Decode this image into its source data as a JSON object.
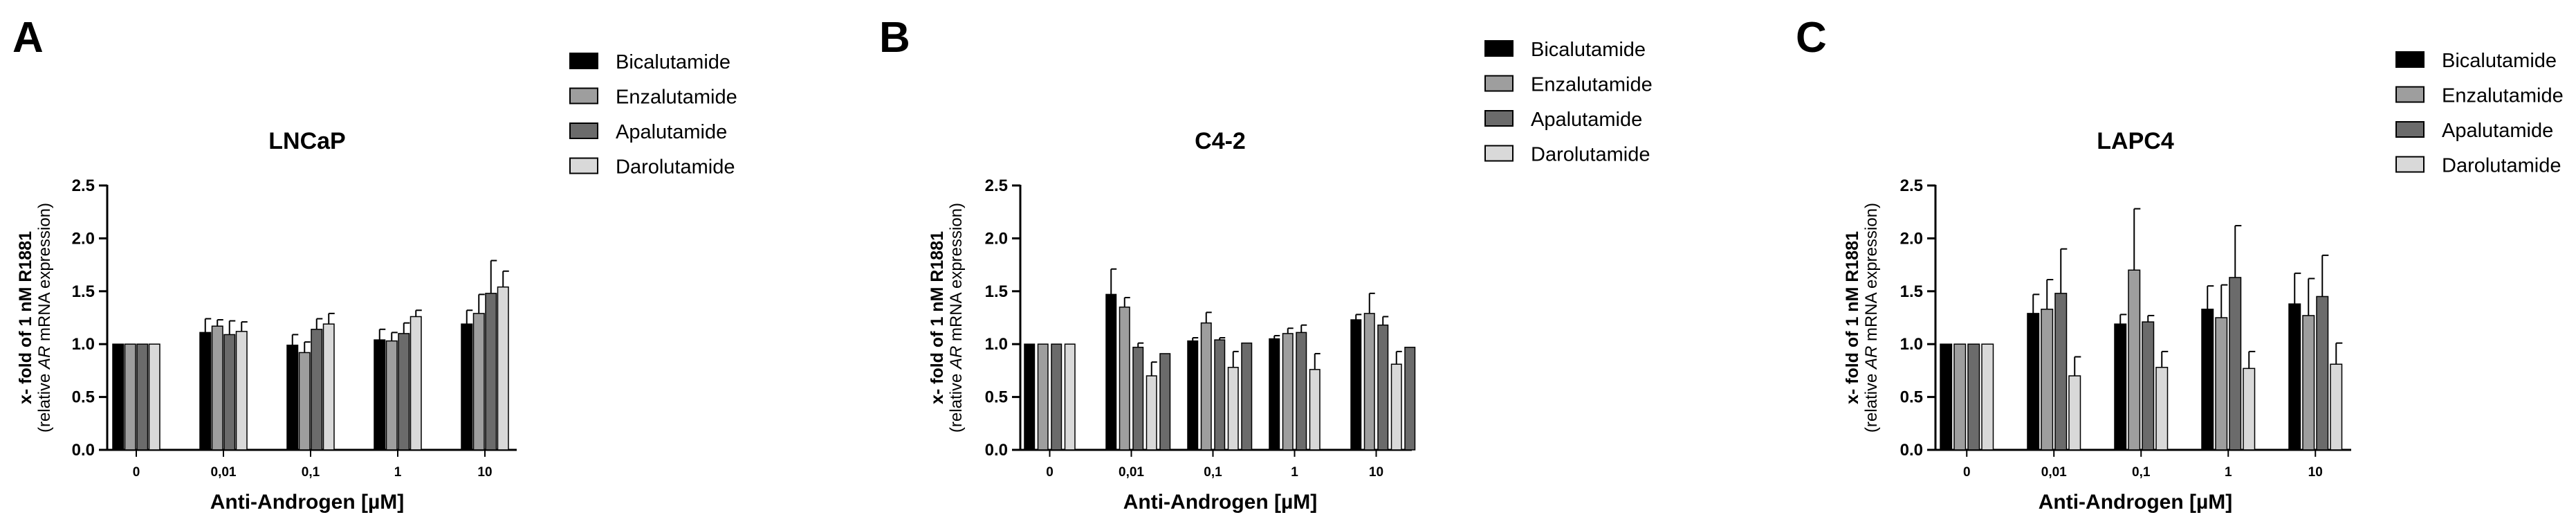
{
  "chart_data": [
    {
      "type": "bar",
      "panel_label": "A",
      "title": "LNCaP",
      "xlabel": "Anti-Androgen [µM]",
      "ylabel_line1": "x- fold of 1 nM R1881",
      "ylabel_line2_pre": "(relative ",
      "ylabel_line2_italic": "AR",
      "ylabel_line2_post": " mRNA expression)",
      "ylim": [
        0,
        2.5
      ],
      "yticks": [
        "0.0",
        "0.5",
        "1.0",
        "1.5",
        "2.0",
        "2.5"
      ],
      "categories": [
        "0",
        "0,01",
        "0,1",
        "1",
        "10"
      ],
      "series": [
        {
          "name": "Bicalutamide",
          "color": "#000000",
          "values": [
            1.0,
            1.11,
            0.99,
            1.04,
            1.19
          ],
          "errors": [
            0,
            0.13,
            0.1,
            0.1,
            0.13
          ]
        },
        {
          "name": "Enzalutamide",
          "color": "#9e9e9e",
          "values": [
            1.0,
            1.17,
            0.92,
            1.03,
            1.29
          ],
          "errors": [
            0,
            0.06,
            0.1,
            0.08,
            0.18
          ]
        },
        {
          "name": "Apalutamide",
          "color": "#6b6b6b",
          "values": [
            1.0,
            1.09,
            1.14,
            1.1,
            1.48
          ],
          "errors": [
            0,
            0.13,
            0.1,
            0.1,
            0.31
          ]
        },
        {
          "name": "Darolutamide",
          "color": "#d9d9d9",
          "values": [
            1.0,
            1.12,
            1.19,
            1.26,
            1.54
          ],
          "errors": [
            0,
            0.09,
            0.1,
            0.06,
            0.15
          ]
        }
      ],
      "legend": "top-right"
    },
    {
      "type": "bar",
      "panel_label": "B",
      "title": "C4-2",
      "xlabel": "Anti-Androgen [µM]",
      "ylabel_line1": "x- fold of 1 nM R1881",
      "ylabel_line2_pre": "(relative ",
      "ylabel_line2_italic": "AR",
      "ylabel_line2_post": " mRNA expression)",
      "ylim": [
        0,
        2.5
      ],
      "yticks": [
        "0.0",
        "0.5",
        "1.0",
        "1.5",
        "2.0",
        "2.5"
      ],
      "categories": [
        "0",
        "0,01",
        "0,1",
        "1",
        "10"
      ],
      "series": [
        {
          "name": "Bicalutamide",
          "color": "#000000",
          "values": [
            1.0,
            1.47,
            1.03,
            1.05,
            1.23
          ],
          "errors": [
            0,
            0.24,
            0.03,
            0.03,
            0.05
          ]
        },
        {
          "name": "Enzalutamide",
          "color": "#9e9e9e",
          "values": [
            1.0,
            1.35,
            1.2,
            1.1,
            1.29
          ],
          "errors": [
            0,
            0.09,
            0.1,
            0.05,
            0.19
          ]
        },
        {
          "name": "Apalutamide",
          "color": "#6b6b6b",
          "values": [
            1.0,
            0.97,
            1.04,
            1.11,
            1.18
          ],
          "errors": [
            0,
            0.04,
            0.02,
            0.07,
            0.08
          ]
        },
        {
          "name": "Darolutamide",
          "color": "#d9d9d9",
          "values": [
            1.0,
            0.7,
            0.78,
            0.76,
            0.81
          ],
          "errors": [
            0,
            0.13,
            0.15,
            0.15,
            0.12
          ]
        }
      ],
      "extra_bars_values": [
        0.91,
        1.01,
        0.0,
        0.97
      ],
      "legend": "top-right"
    },
    {
      "type": "bar",
      "panel_label": "C",
      "title": "LAPC4",
      "xlabel": "Anti-Androgen [µM]",
      "ylabel_line1": "x- fold of 1 nM R1881",
      "ylabel_line2_pre": "(relative ",
      "ylabel_line2_italic": "AR",
      "ylabel_line2_post": " mRNA expression)",
      "ylim": [
        0,
        2.5
      ],
      "yticks": [
        "0.0",
        "0.5",
        "1.0",
        "1.5",
        "2.0",
        "2.5"
      ],
      "categories": [
        "0",
        "0,01",
        "0,1",
        "1",
        "10"
      ],
      "series": [
        {
          "name": "Bicalutamide",
          "color": "#000000",
          "values": [
            1.0,
            1.29,
            1.19,
            1.33,
            1.38
          ],
          "errors": [
            0,
            0.18,
            0.09,
            0.22,
            0.29
          ]
        },
        {
          "name": "Enzalutamide",
          "color": "#9e9e9e",
          "values": [
            1.0,
            1.33,
            1.7,
            1.25,
            1.27
          ],
          "errors": [
            0,
            0.28,
            0.58,
            0.31,
            0.35
          ]
        },
        {
          "name": "Apalutamide",
          "color": "#6b6b6b",
          "values": [
            1.0,
            1.48,
            1.21,
            1.63,
            1.45
          ],
          "errors": [
            0,
            0.42,
            0.06,
            0.49,
            0.39
          ]
        },
        {
          "name": "Darolutamide",
          "color": "#d9d9d9",
          "values": [
            1.0,
            0.7,
            0.78,
            0.77,
            0.81
          ],
          "errors": [
            0,
            0.18,
            0.15,
            0.16,
            0.2
          ]
        }
      ],
      "legend": "top-right"
    }
  ]
}
